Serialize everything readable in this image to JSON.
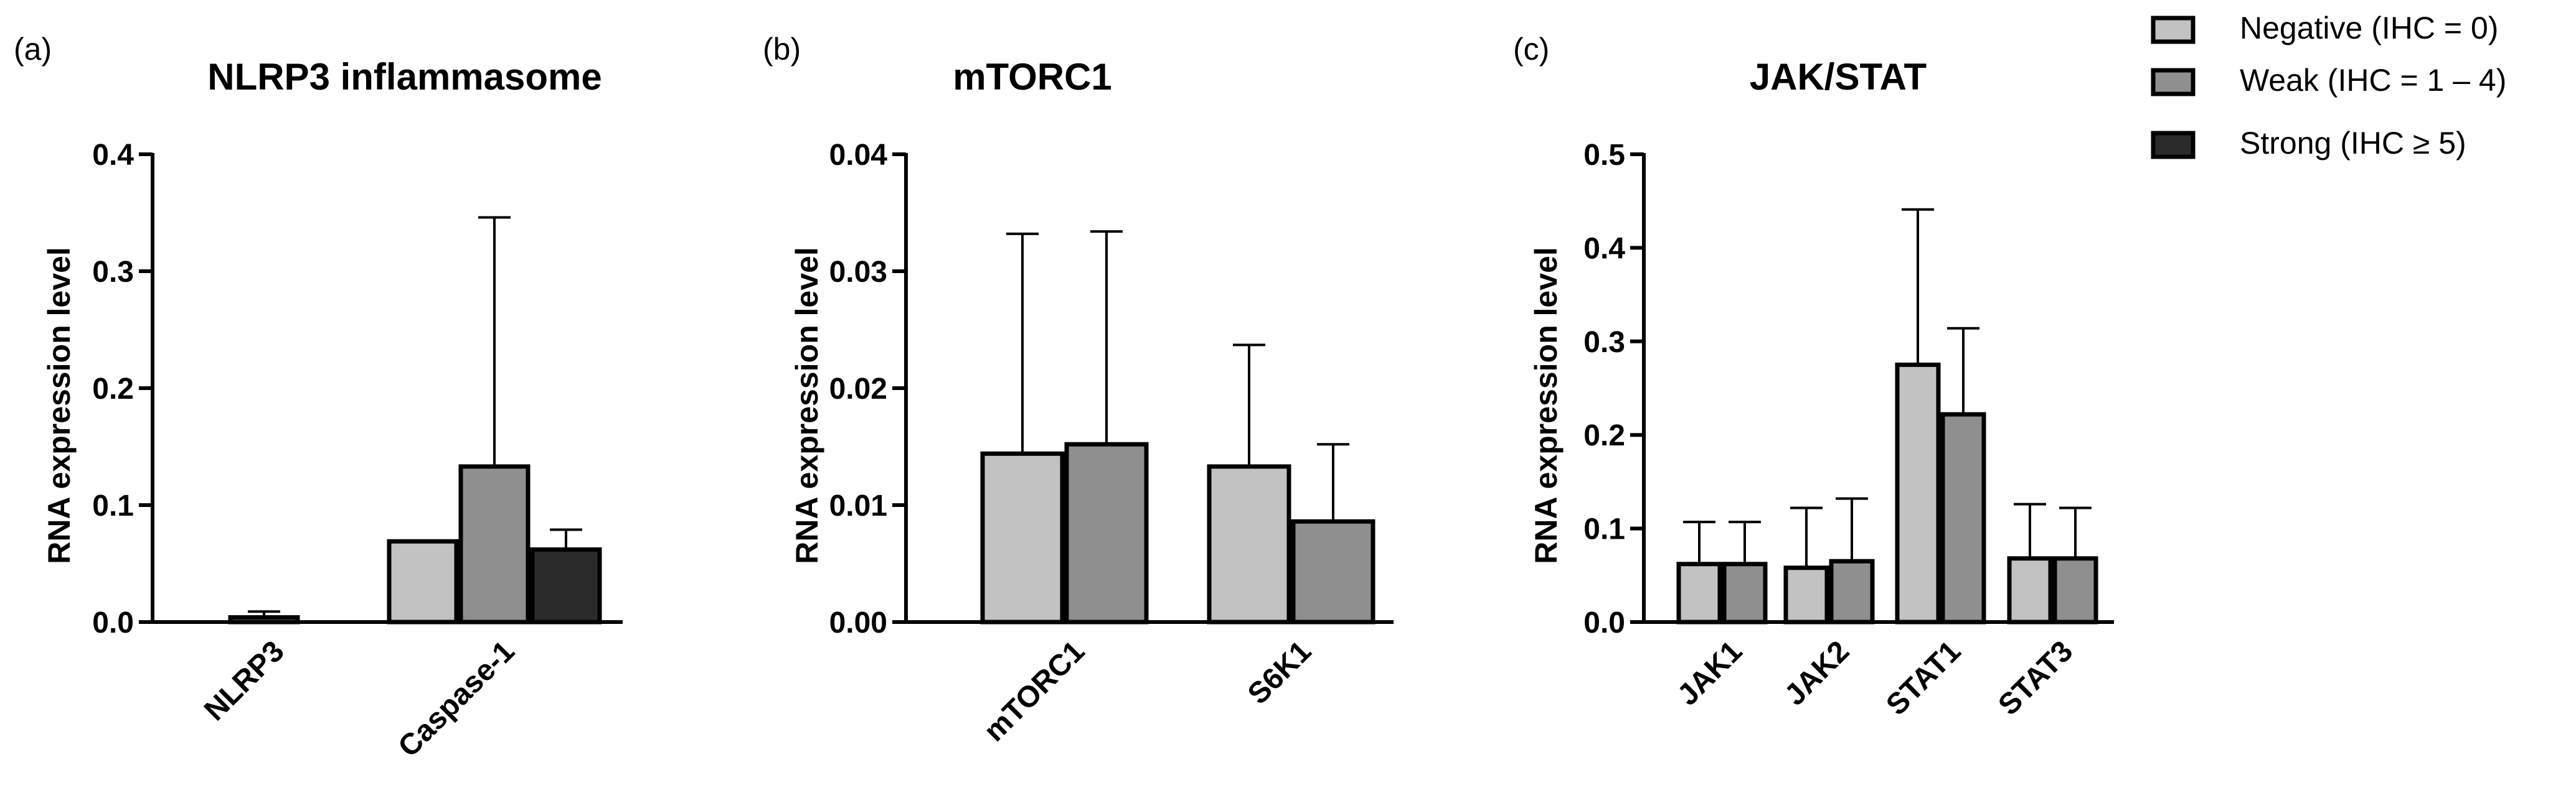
{
  "colors": {
    "negative": "#c2c2c2",
    "weak": "#8f8f8f",
    "strong": "#2b2b2b",
    "axis": "#000000"
  },
  "legend": {
    "placement": "top-right",
    "items": [
      {
        "key": "negative",
        "label": "Negative (IHC = 0)"
      },
      {
        "key": "weak",
        "label": "Weak (IHC = 1 – 4)"
      },
      {
        "key": "strong",
        "label": "Strong (IHC ≥ 5)"
      }
    ]
  },
  "chart_data": [
    {
      "panel_label": "(a)",
      "type": "bar",
      "title": "NLRP3 inflammasome",
      "xlabel": "",
      "ylabel": "RNA expression level",
      "ylim": [
        0,
        0.4
      ],
      "yticks": [
        "0.0",
        "0.1",
        "0.2",
        "0.3",
        "0.4"
      ],
      "grid": false,
      "categories": [
        "NLRP3",
        "Caspase-1"
      ],
      "series": [
        {
          "name": "Negative (IHC = 0)",
          "key": "negative",
          "values": [
            0,
            0.069
          ],
          "errors": [
            0,
            0
          ]
        },
        {
          "name": "Weak (IHC = 1 – 4)",
          "key": "weak",
          "values": [
            0.004,
            0.133
          ],
          "errors": [
            0.005,
            0.213
          ]
        },
        {
          "name": "Strong (IHC ≥ 5)",
          "key": "strong",
          "values": [
            0,
            0.062
          ],
          "errors": [
            0,
            0.017
          ]
        }
      ]
    },
    {
      "panel_label": "(b)",
      "type": "bar",
      "title": "mTORC1",
      "xlabel": "",
      "ylabel": "RNA expression level",
      "ylim": [
        0,
        0.04
      ],
      "yticks": [
        "0.00",
        "0.01",
        "0.02",
        "0.03",
        "0.04"
      ],
      "grid": false,
      "categories": [
        "mTORC1",
        "S6K1"
      ],
      "series": [
        {
          "name": "Negative (IHC = 0)",
          "key": "negative",
          "values": [
            0.0144,
            0.0133
          ],
          "errors": [
            0.0188,
            0.0104
          ]
        },
        {
          "name": "Weak (IHC = 1 – 4)",
          "key": "weak",
          "values": [
            0.0152,
            0.0086
          ],
          "errors": [
            0.0182,
            0.0066
          ]
        }
      ]
    },
    {
      "panel_label": "(c)",
      "type": "bar",
      "title": "JAK/STAT",
      "xlabel": "",
      "ylabel": "RNA expression level",
      "ylim": [
        0,
        0.5
      ],
      "yticks": [
        "0.0",
        "0.1",
        "0.2",
        "0.3",
        "0.4",
        "0.5"
      ],
      "grid": false,
      "categories": [
        "JAK1",
        "JAK2",
        "STAT1",
        "STAT3"
      ],
      "series": [
        {
          "name": "Negative (IHC = 0)",
          "key": "negative",
          "values": [
            0.062,
            0.058,
            0.275,
            0.068
          ],
          "errors": [
            0.045,
            0.064,
            0.166,
            0.058
          ]
        },
        {
          "name": "Weak (IHC = 1 – 4)",
          "key": "weak",
          "values": [
            0.062,
            0.065,
            0.222,
            0.068
          ],
          "errors": [
            0.045,
            0.067,
            0.092,
            0.054
          ]
        }
      ]
    }
  ]
}
